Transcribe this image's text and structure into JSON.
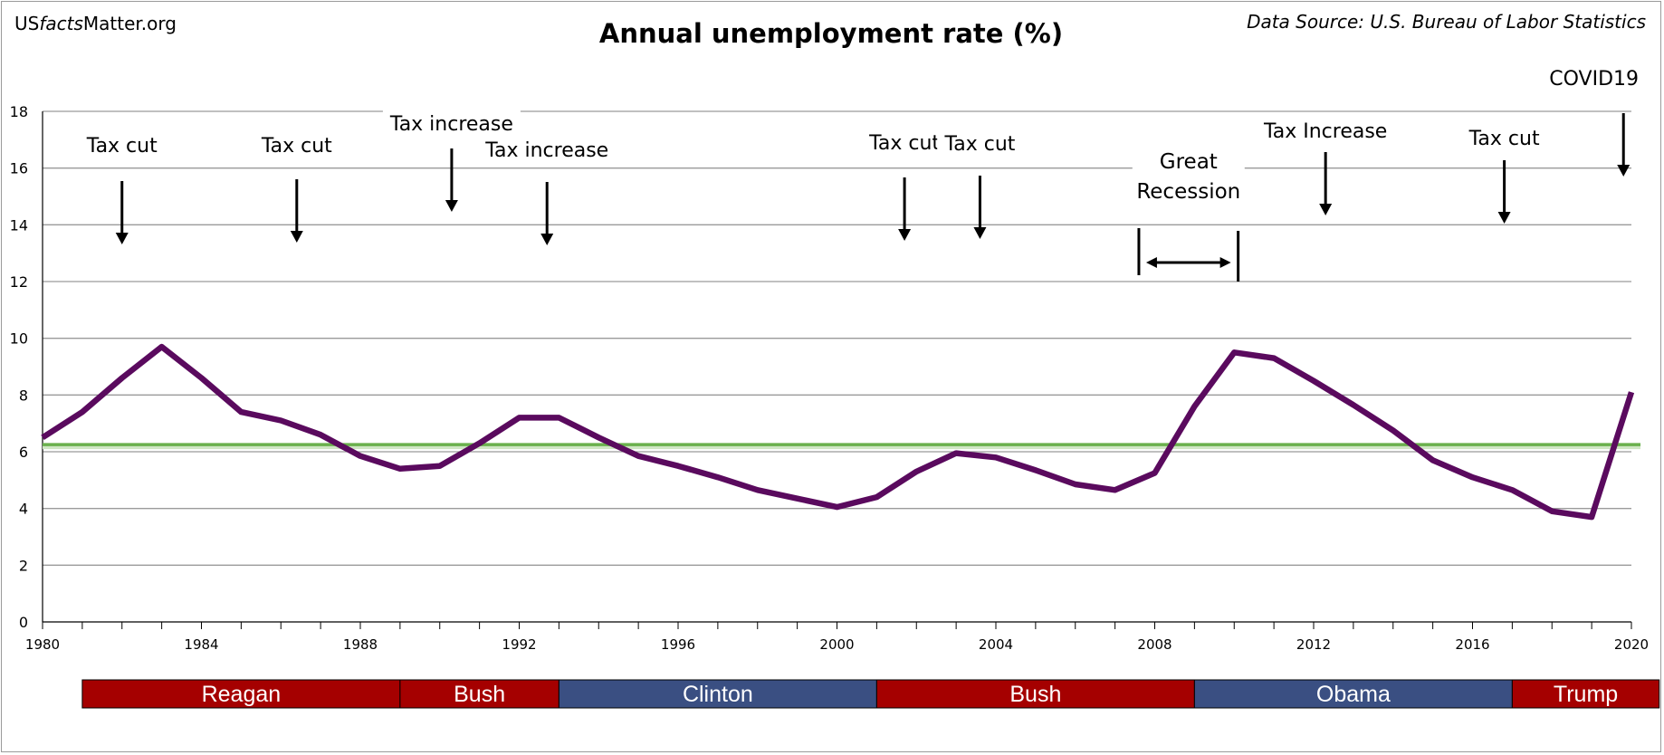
{
  "site": {
    "us": "US",
    "facts": "facts",
    "matter": "Matter.org"
  },
  "source": "Data Source: U.S. Bureau of Labor Statistics",
  "colors": {
    "line": "#5a0a5e",
    "average": "#6ab04c",
    "republican": "#a50000",
    "democrat": "#3a4f82",
    "grid": "#9a9a9a"
  },
  "chart_data": {
    "type": "line",
    "title": "Annual unemployment rate (%)",
    "xlabel": "",
    "ylabel": "",
    "xlim": [
      1980,
      2020
    ],
    "ylim": [
      0,
      18
    ],
    "grid": true,
    "x_ticks": [
      1980,
      1984,
      1988,
      1992,
      1996,
      2000,
      2004,
      2008,
      2012,
      2016,
      2020
    ],
    "y_ticks": [
      0,
      2,
      4,
      6,
      8,
      10,
      12,
      14,
      16,
      18
    ],
    "series": [
      {
        "x": [
          1980,
          1981,
          1982,
          1983,
          1984,
          1985,
          1986,
          1987,
          1988,
          1989,
          1990,
          1991,
          1992,
          1993,
          1994,
          1995,
          1996,
          1997,
          1998,
          1999,
          2000,
          2001,
          2002,
          2003,
          2004,
          2005,
          2006,
          2007,
          2008,
          2009,
          2010,
          2011,
          2012,
          2013,
          2014,
          2015,
          2016,
          2017,
          2018,
          2019,
          2020
        ],
        "values": [
          6.5,
          7.4,
          8.6,
          9.7,
          8.6,
          7.4,
          7.1,
          6.6,
          5.85,
          5.4,
          5.5,
          6.3,
          7.2,
          7.2,
          6.5,
          5.85,
          5.5,
          5.1,
          4.65,
          4.35,
          4.05,
          4.4,
          5.3,
          5.95,
          5.8,
          5.35,
          4.85,
          4.65,
          5.25,
          7.6,
          9.5,
          9.3,
          8.5,
          7.65,
          6.75,
          5.7,
          5.1,
          4.65,
          3.9,
          3.7,
          8.1
        ]
      }
    ],
    "reference_line": {
      "value": 6.25
    },
    "annotations": [
      {
        "text": "Tax cut",
        "x": 1982
      },
      {
        "text": "Tax cut",
        "x": 1986.4
      },
      {
        "text": "Tax increase",
        "x": 1990.3
      },
      {
        "text": "Tax increase",
        "x": 1992.7
      },
      {
        "text": "Tax cut",
        "x": 2001.7
      },
      {
        "text": "Tax cut",
        "x": 2003.6
      },
      {
        "text": "Great",
        "text2": "Recession",
        "x_start": 2007.6,
        "x_end": 2010.1
      },
      {
        "text": "Tax Increase",
        "x": 2012.3
      },
      {
        "text": "Tax cut",
        "x": 2016.8
      },
      {
        "text": "COVID19",
        "x": 2019.8
      }
    ],
    "administrations": [
      {
        "name": "Reagan",
        "start": 1981,
        "end": 1989,
        "party": "republican"
      },
      {
        "name": "Bush",
        "start": 1989,
        "end": 1993,
        "party": "republican"
      },
      {
        "name": "Clinton",
        "start": 1993,
        "end": 2001,
        "party": "democrat"
      },
      {
        "name": "Bush",
        "start": 2001,
        "end": 2009,
        "party": "republican"
      },
      {
        "name": "Obama",
        "start": 2009,
        "end": 2017,
        "party": "democrat"
      },
      {
        "name": "Trump",
        "start": 2017,
        "end": 2020.7,
        "party": "republican"
      }
    ]
  }
}
